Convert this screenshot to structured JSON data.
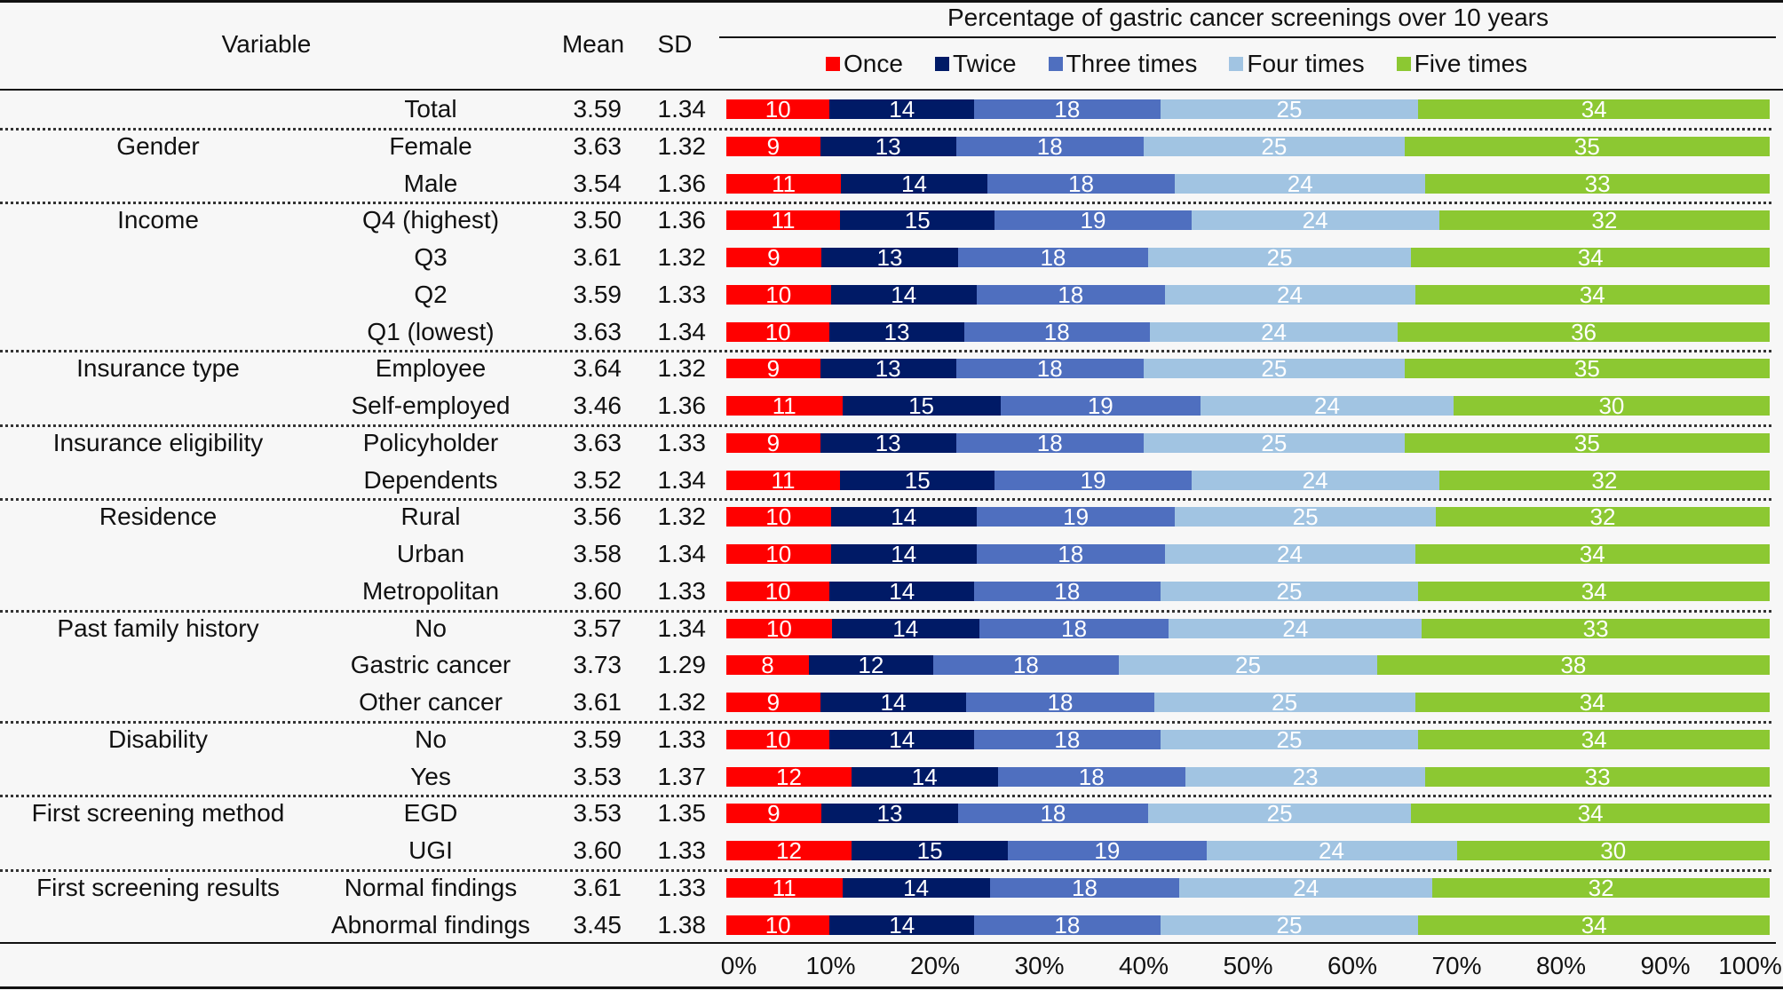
{
  "header": {
    "variable": "Variable",
    "mean": "Mean",
    "sd": "SD",
    "chart_title": "Percentage of gastric cancer screenings over 10 years"
  },
  "legend": [
    {
      "label": "Once",
      "color": "#ff0000"
    },
    {
      "label": "Twice",
      "color": "#001a66"
    },
    {
      "label": "Three times",
      "color": "#4f6fbf"
    },
    {
      "label": "Four times",
      "color": "#a1c4e2"
    },
    {
      "label": "Five times",
      "color": "#8cc832"
    }
  ],
  "groups": [
    {
      "name": "",
      "rows": [
        {
          "label": "Total",
          "mean": "3.59",
          "sd": "1.34",
          "values": [
            10,
            14,
            18,
            25,
            34
          ]
        }
      ]
    },
    {
      "name": "Gender",
      "rows": [
        {
          "label": "Female",
          "mean": "3.63",
          "sd": "1.32",
          "values": [
            9,
            13,
            18,
            25,
            35
          ]
        },
        {
          "label": "Male",
          "mean": "3.54",
          "sd": "1.36",
          "values": [
            11,
            14,
            18,
            24,
            33
          ]
        }
      ]
    },
    {
      "name": "Income",
      "rows": [
        {
          "label": "Q4 (highest)",
          "mean": "3.50",
          "sd": "1.36",
          "values": [
            11,
            15,
            19,
            24,
            32
          ]
        },
        {
          "label": "Q3",
          "mean": "3.61",
          "sd": "1.32",
          "values": [
            9,
            13,
            18,
            25,
            34
          ]
        },
        {
          "label": "Q2",
          "mean": "3.59",
          "sd": "1.33",
          "values": [
            10,
            14,
            18,
            24,
            34
          ]
        },
        {
          "label": "Q1 (lowest)",
          "mean": "3.63",
          "sd": "1.34",
          "values": [
            10,
            13,
            18,
            24,
            36
          ]
        }
      ]
    },
    {
      "name": "Insurance type",
      "rows": [
        {
          "label": "Employee",
          "mean": "3.64",
          "sd": "1.32",
          "values": [
            9,
            13,
            18,
            25,
            35
          ]
        },
        {
          "label": "Self-employed",
          "mean": "3.46",
          "sd": "1.36",
          "values": [
            11,
            15,
            19,
            24,
            30
          ]
        }
      ]
    },
    {
      "name": "Insurance eligibility",
      "rows": [
        {
          "label": "Policyholder",
          "mean": "3.63",
          "sd": "1.33",
          "values": [
            9,
            13,
            18,
            25,
            35
          ]
        },
        {
          "label": "Dependents",
          "mean": "3.52",
          "sd": "1.34",
          "values": [
            11,
            15,
            19,
            24,
            32
          ]
        }
      ]
    },
    {
      "name": "Residence",
      "rows": [
        {
          "label": "Rural",
          "mean": "3.56",
          "sd": "1.32",
          "values": [
            10,
            14,
            19,
            25,
            32
          ]
        },
        {
          "label": "Urban",
          "mean": "3.58",
          "sd": "1.34",
          "values": [
            10,
            14,
            18,
            24,
            34
          ]
        },
        {
          "label": "Metropolitan",
          "mean": "3.60",
          "sd": "1.33",
          "values": [
            10,
            14,
            18,
            25,
            34
          ]
        }
      ]
    },
    {
      "name": "Past family history",
      "rows": [
        {
          "label": "No",
          "mean": "3.57",
          "sd": "1.34",
          "values": [
            10,
            14,
            18,
            24,
            33
          ]
        },
        {
          "label": "Gastric cancer",
          "mean": "3.73",
          "sd": "1.29",
          "values": [
            8,
            12,
            18,
            25,
            38
          ]
        },
        {
          "label": "Other cancer",
          "mean": "3.61",
          "sd": "1.32",
          "values": [
            9,
            14,
            18,
            25,
            34
          ]
        }
      ]
    },
    {
      "name": "Disability",
      "rows": [
        {
          "label": "No",
          "mean": "3.59",
          "sd": "1.33",
          "values": [
            10,
            14,
            18,
            25,
            34
          ]
        },
        {
          "label": "Yes",
          "mean": "3.53",
          "sd": "1.37",
          "values": [
            12,
            14,
            18,
            23,
            33
          ]
        }
      ]
    },
    {
      "name": "First screening method",
      "rows": [
        {
          "label": "EGD",
          "mean": "3.53",
          "sd": "1.35",
          "values": [
            9,
            13,
            18,
            25,
            34
          ]
        },
        {
          "label": "UGI",
          "mean": "3.60",
          "sd": "1.33",
          "values": [
            12,
            15,
            19,
            24,
            30
          ]
        }
      ]
    },
    {
      "name": "First screening results",
      "rows": [
        {
          "label": "Normal findings",
          "mean": "3.61",
          "sd": "1.33",
          "values": [
            11,
            14,
            18,
            24,
            32
          ]
        },
        {
          "label": "Abnormal findings",
          "mean": "3.45",
          "sd": "1.38",
          "values": [
            10,
            14,
            18,
            25,
            34
          ]
        }
      ]
    }
  ],
  "x_ticks": [
    "0%",
    "10%",
    "20%",
    "30%",
    "40%",
    "50%",
    "60%",
    "70%",
    "80%",
    "90%",
    "100%"
  ],
  "chart_data": {
    "type": "bar",
    "orientation": "horizontal",
    "stacked": true,
    "normalized": true,
    "title": "Percentage of gastric cancer screenings over 10 years",
    "xlabel": "",
    "ylabel": "Variable",
    "xlim": [
      0,
      100
    ],
    "x_tick_labels": [
      "0%",
      "10%",
      "20%",
      "30%",
      "40%",
      "50%",
      "60%",
      "70%",
      "80%",
      "90%",
      "100%"
    ],
    "legend_position": "top",
    "categories": [
      "Total",
      "Gender: Female",
      "Gender: Male",
      "Income: Q4 (highest)",
      "Income: Q3",
      "Income: Q2",
      "Income: Q1 (lowest)",
      "Insurance type: Employee",
      "Insurance type: Self-employed",
      "Insurance eligibility: Policyholder",
      "Insurance eligibility: Dependents",
      "Residence: Rural",
      "Residence: Urban",
      "Residence: Metropolitan",
      "Past family history: No",
      "Past family history: Gastric cancer",
      "Past family history: Other cancer",
      "Disability: No",
      "Disability: Yes",
      "First screening method: EGD",
      "First screening method: UGI",
      "First screening results: Normal findings",
      "First screening results: Abnormal findings"
    ],
    "series": [
      {
        "name": "Once",
        "color": "#ff0000",
        "values": [
          10,
          9,
          11,
          11,
          9,
          10,
          10,
          9,
          11,
          9,
          11,
          10,
          10,
          10,
          10,
          8,
          9,
          10,
          12,
          9,
          12,
          11,
          10
        ]
      },
      {
        "name": "Twice",
        "color": "#001a66",
        "values": [
          14,
          13,
          14,
          15,
          13,
          14,
          13,
          13,
          15,
          13,
          15,
          14,
          14,
          14,
          14,
          12,
          14,
          14,
          14,
          13,
          15,
          14,
          14
        ]
      },
      {
        "name": "Three times",
        "color": "#4f6fbf",
        "values": [
          18,
          18,
          18,
          19,
          18,
          18,
          18,
          18,
          19,
          18,
          19,
          19,
          18,
          18,
          18,
          18,
          18,
          18,
          18,
          18,
          19,
          18,
          18
        ]
      },
      {
        "name": "Four times",
        "color": "#a1c4e2",
        "values": [
          25,
          25,
          24,
          24,
          25,
          24,
          24,
          25,
          24,
          25,
          24,
          25,
          24,
          25,
          24,
          25,
          25,
          25,
          23,
          25,
          24,
          24,
          25
        ]
      },
      {
        "name": "Five times",
        "color": "#8cc832",
        "values": [
          34,
          35,
          33,
          32,
          34,
          34,
          36,
          35,
          30,
          35,
          32,
          32,
          34,
          34,
          33,
          38,
          34,
          34,
          33,
          34,
          30,
          32,
          34
        ]
      }
    ]
  }
}
